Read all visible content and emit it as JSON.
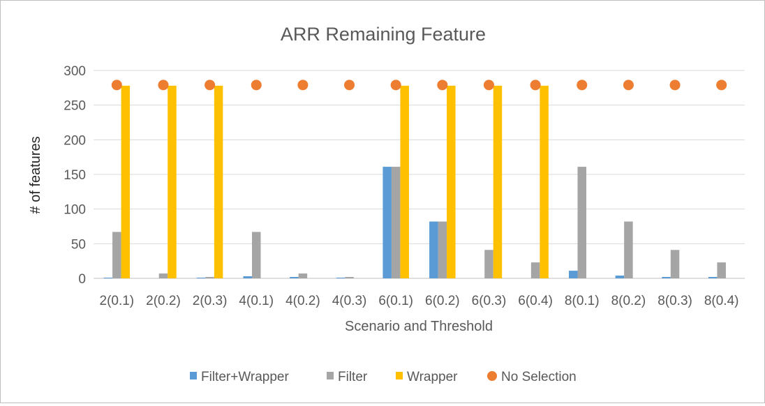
{
  "chart_data": {
    "type": "bar",
    "title": "ARR Remaining Feature",
    "xlabel": "Scenario and Threshold",
    "ylabel": "# of features",
    "ylim": [
      0,
      300
    ],
    "yticks": [
      0,
      50,
      100,
      150,
      200,
      250,
      300
    ],
    "ytick_labels": [
      "0",
      "50",
      "100",
      "150",
      "200",
      "250",
      "300"
    ],
    "grid": true,
    "legend_position": "bottom",
    "categories": [
      "2(0.1)",
      "2(0.2)",
      "2(0.3)",
      "4(0.1)",
      "4(0.2)",
      "4(0.3)",
      "6(0.1)",
      "6(0.2)",
      "6(0.3)",
      "6(0.4)",
      "8(0.1)",
      "8(0.2)",
      "8(0.3)",
      "8(0.4)"
    ],
    "series": [
      {
        "name": "Filter+Wrapper",
        "kind": "bar",
        "color": "#5b9bd5",
        "values": [
          1,
          0,
          1,
          3,
          2,
          1,
          161,
          82,
          0,
          0,
          11,
          4,
          2,
          2
        ]
      },
      {
        "name": "Filter",
        "kind": "bar",
        "color": "#a5a5a5",
        "values": [
          67,
          7,
          2,
          67,
          7,
          2,
          161,
          82,
          41,
          23,
          161,
          82,
          41,
          23
        ]
      },
      {
        "name": "Wrapper",
        "kind": "bar",
        "color": "#ffc000",
        "values": [
          278,
          278,
          278,
          0,
          0,
          0,
          278,
          278,
          278,
          278,
          0,
          0,
          0,
          0
        ]
      },
      {
        "name": "No Selection",
        "kind": "marker",
        "color": "#ed7d31",
        "values": [
          279,
          279,
          279,
          279,
          279,
          279,
          279,
          279,
          279,
          279,
          279,
          279,
          279,
          279
        ]
      }
    ]
  }
}
